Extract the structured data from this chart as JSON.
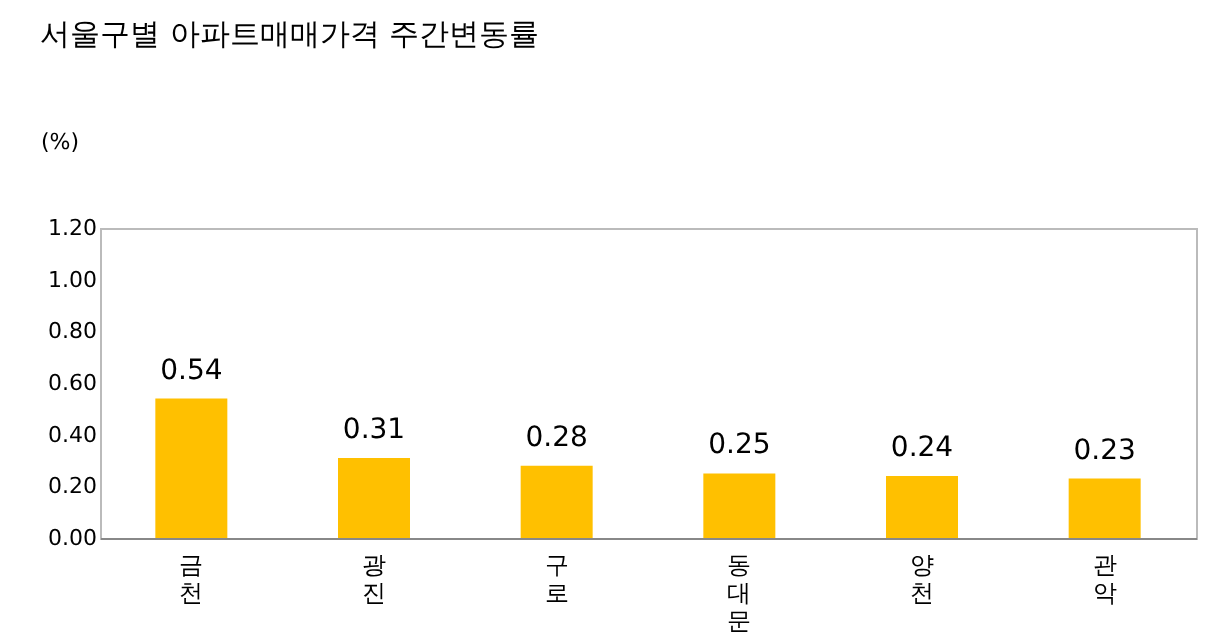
{
  "chart_data": {
    "type": "bar",
    "title": "서울구별 아파트매매가격 주간변동률",
    "ylabel": "(%)",
    "categories": [
      "금천",
      "광진",
      "구로",
      "동대문",
      "양천",
      "관악"
    ],
    "values": [
      0.54,
      0.31,
      0.28,
      0.25,
      0.24,
      0.23
    ],
    "color": "#ffc000",
    "ylim": [
      0,
      1.2
    ],
    "yticks": [
      {
        "value": 0,
        "label": "0.00"
      },
      {
        "value": 0.2,
        "label": "0.20"
      },
      {
        "value": 0.4,
        "label": "0.40"
      },
      {
        "value": 0.6,
        "label": "0.60"
      },
      {
        "value": 0.8,
        "label": "0.80"
      },
      {
        "value": 1.0,
        "label": "1.00"
      },
      {
        "value": 1.2,
        "label": "1.20"
      }
    ],
    "data_labels": true,
    "grid": false
  }
}
